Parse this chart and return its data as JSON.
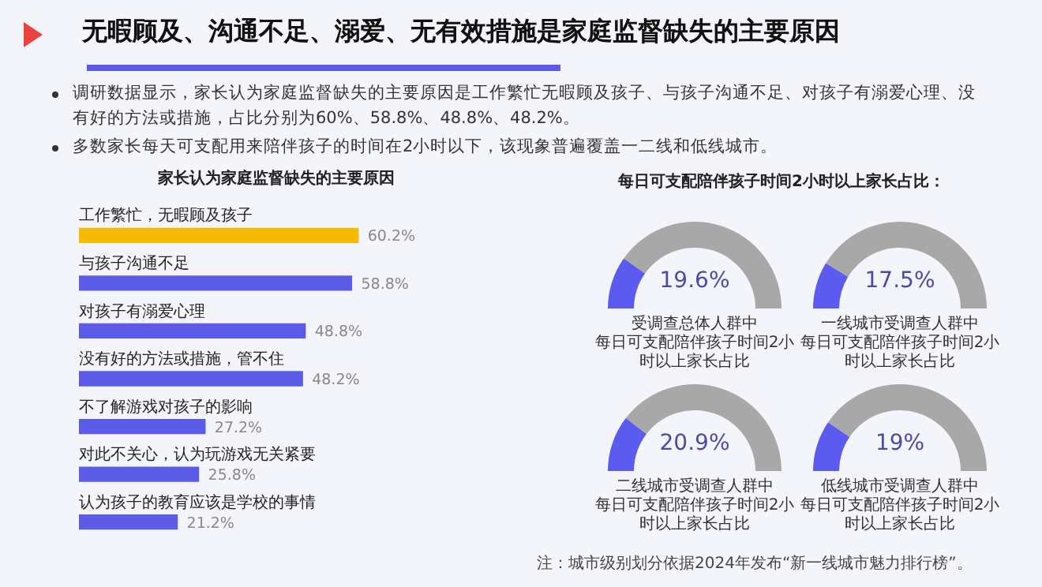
{
  "chart_data": [
    {
      "type": "other",
      "title": "无暇顾及、沟通不足、溺爱、无有效措施是家庭监督缺失的主要原因",
      "annotations": [
        "调研数据显示，家长认为家庭监督缺失的主要原因是工作繁忙无暇顾及孩子、与孩子沟通不足、对孩子有溺爱心理、没有好的方法或措施，占比分别为60%、58.8%、48.8%、48.2%。",
        "多数家长每天可支配用来陪伴孩子的时间在2小时以下，该现象普遍覆盖一二线和低线城市。"
      ]
    },
    {
      "type": "bar",
      "orientation": "horizontal",
      "title": "家长认为家庭监督缺失的主要原因",
      "categories": [
        "工作繁忙，无暇顾及孩子",
        "与孩子沟通不足",
        "对孩子有溺爱心理",
        "没有好的方法或措施，管不住",
        "不了解游戏对孩子的影响",
        "对此不关心，认为玩游戏无关紧要",
        "认为孩子的教育应该是学校的事情"
      ],
      "values": [
        60.2,
        58.8,
        48.8,
        48.2,
        27.2,
        25.8,
        21.2
      ],
      "colors": [
        "#f6bb00",
        "#5b5be8",
        "#5b5be8",
        "#5b5be8",
        "#5b5be8",
        "#5b5be8",
        "#5b5be8"
      ],
      "value_labels": [
        "60.2%",
        "58.8%",
        "48.8%",
        "48.2%",
        "27.2%",
        "25.8%",
        "21.2%"
      ]
    },
    {
      "type": "other",
      "title": "每日可支配陪伴孩子时间2小时以上家长占比："
    },
    {
      "type": "donut",
      "title": "受调查总体人群中",
      "subtitle": "每日可支配陪伴孩子时间2小时以上家长占比",
      "categories": [
        null,
        null
      ],
      "values": [
        19.6,
        80.4
      ],
      "colors": [
        "#5b5bf0",
        "#a8a8a8"
      ],
      "annotations": [
        "19.6%"
      ]
    },
    {
      "type": "donut",
      "title": "一线城市受调查人群中",
      "subtitle": "每日可支配陪伴孩子时间2小时以上家长占比",
      "categories": [
        null,
        null
      ],
      "values": [
        17.5,
        82.5
      ],
      "colors": [
        "#5b5bf0",
        "#a8a8a8"
      ],
      "annotations": [
        "17.5%"
      ]
    },
    {
      "type": "donut",
      "title": "二线城市受调查人群中",
      "subtitle": "每日可支配陪伴孩子时间2小时以上家长占比",
      "categories": [
        null,
        null
      ],
      "values": [
        20.9,
        79.1
      ],
      "colors": [
        "#5b5bf0",
        "#a8a8a8"
      ],
      "annotations": [
        "20.9%"
      ]
    },
    {
      "type": "donut",
      "title": "低线城市受调查人群中",
      "subtitle": "每日可支配陪伴孩子时间2小时以上家长占比",
      "categories": [
        null,
        null
      ],
      "values": [
        19,
        81
      ],
      "colors": [
        "#5b5bf0",
        "#a8a8a8"
      ],
      "annotations": [
        "19%"
      ]
    },
    {
      "type": "other",
      "annotations": [
        "注：城市级别划分依据2024年发布“新一线城市魅力排行榜”。"
      ]
    }
  ]
}
